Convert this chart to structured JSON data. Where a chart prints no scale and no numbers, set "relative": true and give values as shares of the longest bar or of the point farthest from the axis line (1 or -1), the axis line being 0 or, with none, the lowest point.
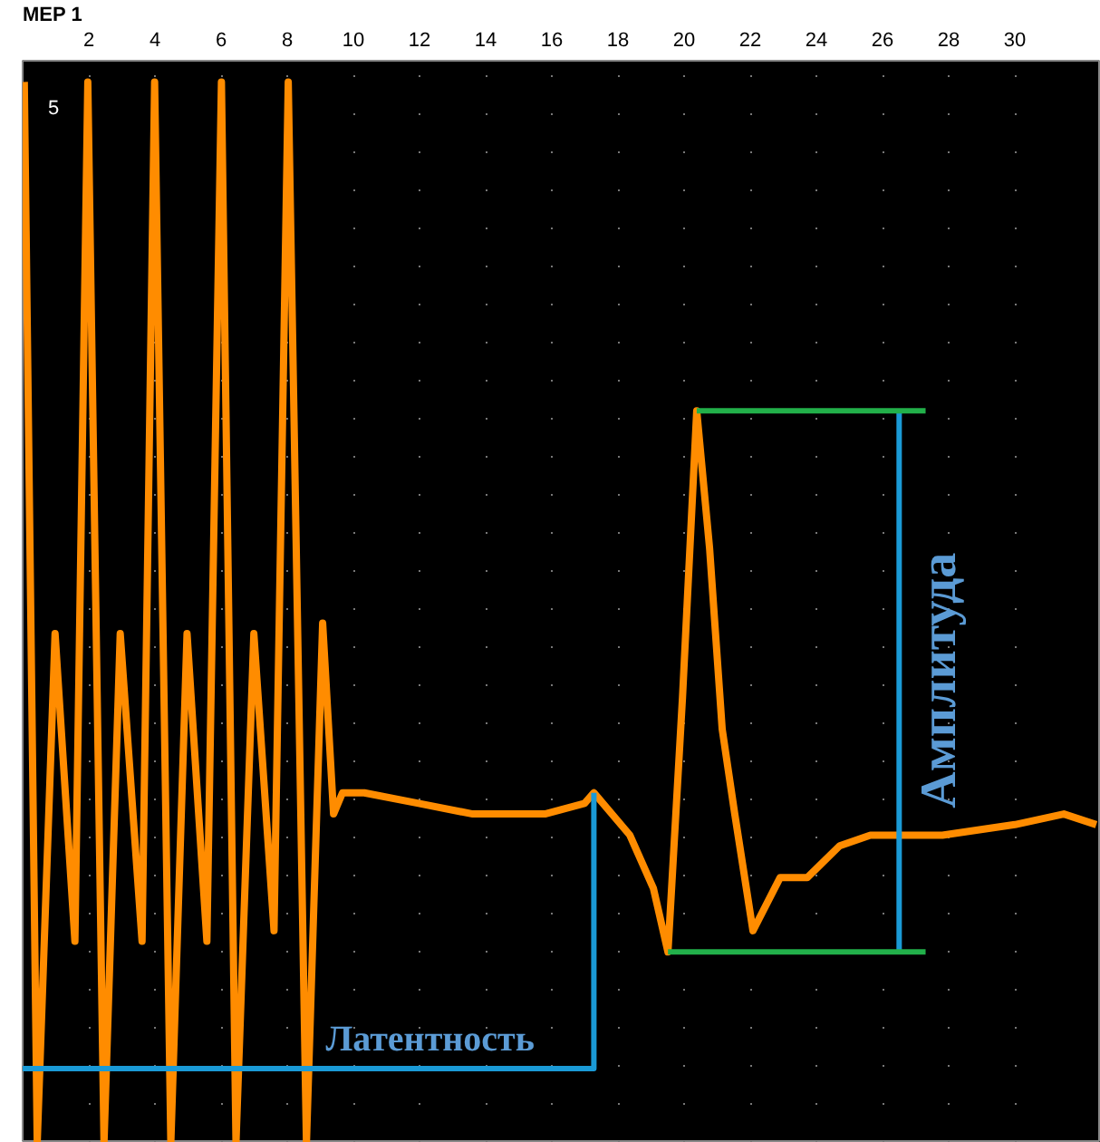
{
  "chart_data": {
    "type": "line",
    "title": "MEP 1",
    "relative": true,
    "x": [
      0.05,
      0.44,
      0.98,
      1.58,
      1.97,
      2.46,
      2.95,
      3.61,
      3.99,
      4.48,
      4.97,
      5.57,
      6.01,
      6.45,
      6.99,
      7.6,
      8.03,
      8.58,
      9.07,
      9.4,
      9.67,
      10.33,
      11.97,
      13.61,
      15.79,
      16.99,
      17.27,
      18.36,
      19.07,
      19.51,
      19.95,
      20.38,
      20.77,
      21.15,
      21.53,
      22.08,
      22.9,
      23.72,
      24.7,
      25.63,
      27.81,
      30.0,
      31.48,
      32.46
    ],
    "series": [
      {
        "color": "#ff8c00",
        "values": [
          1,
          0,
          0.48,
          0.19,
          1,
          0,
          0.48,
          0.19,
          1,
          0,
          0.48,
          0.19,
          1,
          0,
          0.48,
          0.2,
          1,
          0,
          0.49,
          0.31,
          0.33,
          0.33,
          0.32,
          0.31,
          0.31,
          0.32,
          0.33,
          0.29,
          0.24,
          0.18,
          0.42,
          0.69,
          0.56,
          0.39,
          0.31,
          0.2,
          0.25,
          0.25,
          0.28,
          0.29,
          0.29,
          0.3,
          0.31,
          0.3
        ]
      },
      {
        "color": "#1a9ad6",
        "x": [
          0,
          17.27,
          17.27
        ],
        "values": [
          0.07,
          0.07,
          0.33
        ]
      },
      {
        "color": "#1a9ad6",
        "x": [
          26.5,
          26.5
        ],
        "values": [
          0.18,
          0.69
        ]
      },
      {
        "color": "#22b04a",
        "x": [
          20.38,
          27.3
        ],
        "values": [
          0.69,
          0.69
        ]
      },
      {
        "color": "#22b04a",
        "x": [
          19.51,
          27.3
        ],
        "values": [
          0.18,
          0.18
        ]
      }
    ],
    "xlim": [
      0,
      32.6
    ],
    "xticks": [
      2,
      4,
      6,
      8,
      10,
      12,
      14,
      16,
      18,
      20,
      22,
      24,
      26,
      28,
      30
    ],
    "grid": "x",
    "tick_labels": "x",
    "marker": "none",
    "line_style": "solid",
    "annotations": [
      "5",
      "Латентность",
      "Амплитуда"
    ]
  }
}
